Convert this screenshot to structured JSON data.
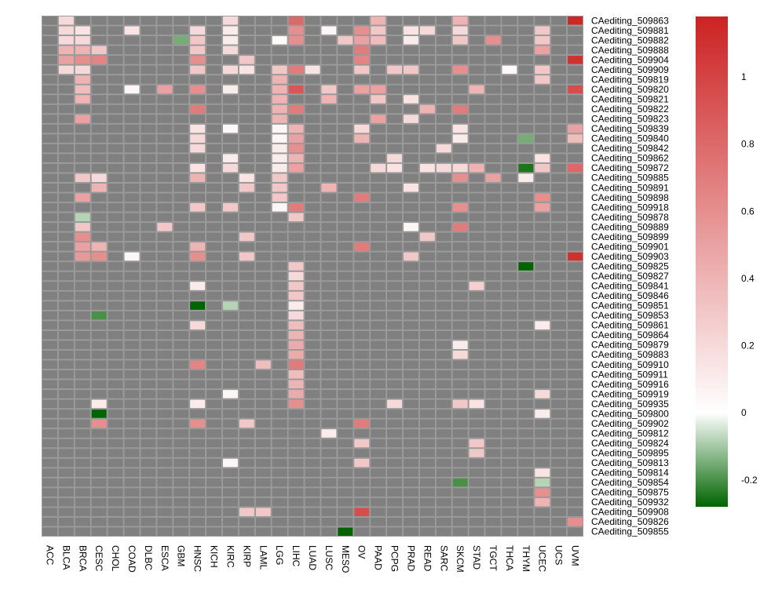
{
  "chart_data": {
    "type": "heatmap",
    "title": "",
    "xlabel": "",
    "ylabel": "",
    "columns": [
      "ACC",
      "BLCA",
      "BRCA",
      "CESC",
      "CHOL",
      "COAD",
      "DLBC",
      "ESCA",
      "GBM",
      "HNSC",
      "KICH",
      "KIRC",
      "KIRP",
      "LAML",
      "LGG",
      "LIHC",
      "LUAD",
      "LUSC",
      "MESO",
      "OV",
      "PAAD",
      "PCPG",
      "PRAD",
      "READ",
      "SARC",
      "SKCM",
      "STAD",
      "TGCT",
      "THCA",
      "THYM",
      "UCEC",
      "UCS",
      "UVM"
    ],
    "rows": [
      "CAediting_509863",
      "CAediting_509881",
      "CAediting_509882",
      "CAediting_509888",
      "CAediting_509904",
      "CAediting_509909",
      "CAediting_509819",
      "CAediting_509820",
      "CAediting_509821",
      "CAediting_509822",
      "CAediting_509823",
      "CAediting_509839",
      "CAediting_509840",
      "CAediting_509842",
      "CAediting_509862",
      "CAediting_509872",
      "CAediting_509885",
      "CAediting_509891",
      "CAediting_509898",
      "CAediting_509918",
      "CAediting_509878",
      "CAediting_509889",
      "CAediting_509899",
      "CAediting_509901",
      "CAediting_509903",
      "CAediting_509825",
      "CAediting_509827",
      "CAediting_509841",
      "CAediting_509846",
      "CAediting_509851",
      "CAediting_509853",
      "CAediting_509861",
      "CAediting_509864",
      "CAediting_509879",
      "CAediting_509883",
      "CAediting_509910",
      "CAediting_509911",
      "CAediting_509916",
      "CAediting_509919",
      "CAediting_509935",
      "CAediting_509800",
      "CAediting_509902",
      "CAediting_509812",
      "CAediting_509824",
      "CAediting_509895",
      "CAediting_509813",
      "CAediting_509814",
      "CAediting_509854",
      "CAediting_509875",
      "CAediting_509932",
      "CAediting_509908",
      "CAediting_509826",
      "CAediting_509855"
    ],
    "cells": [
      [
        "CAediting_509863",
        "BLCA",
        0.2
      ],
      [
        "CAediting_509863",
        "KIRC",
        0.2
      ],
      [
        "CAediting_509863",
        "LIHC",
        0.8
      ],
      [
        "CAediting_509863",
        "PAAD",
        0.4
      ],
      [
        "CAediting_509863",
        "SKCM",
        0.4
      ],
      [
        "CAediting_509863",
        "UVM",
        1.15
      ],
      [
        "CAediting_509881",
        "BLCA",
        0.2
      ],
      [
        "CAediting_509881",
        "BRCA",
        0.15
      ],
      [
        "CAediting_509881",
        "COAD",
        0.15
      ],
      [
        "CAediting_509881",
        "HNSC",
        0.2
      ],
      [
        "CAediting_509881",
        "KIRC",
        0.1
      ],
      [
        "CAediting_509881",
        "LIHC",
        0.6
      ],
      [
        "CAediting_509881",
        "LUSC",
        0.05
      ],
      [
        "CAediting_509881",
        "OV",
        0.6
      ],
      [
        "CAediting_509881",
        "PAAD",
        0.3
      ],
      [
        "CAediting_509881",
        "PRAD",
        0.15
      ],
      [
        "CAediting_509881",
        "READ",
        0.2
      ],
      [
        "CAediting_509881",
        "SKCM",
        0.2
      ],
      [
        "CAediting_509881",
        "UCEC",
        0.3
      ],
      [
        "CAediting_509882",
        "BLCA",
        0.2
      ],
      [
        "CAediting_509882",
        "BRCA",
        0.2
      ],
      [
        "CAediting_509882",
        "GBM",
        -0.15
      ],
      [
        "CAediting_509882",
        "HNSC",
        0.3
      ],
      [
        "CAediting_509882",
        "KIRC",
        0.1
      ],
      [
        "CAediting_509882",
        "LGG",
        0.02
      ],
      [
        "CAediting_509882",
        "LIHC",
        0.6
      ],
      [
        "CAediting_509882",
        "MESO",
        0.3
      ],
      [
        "CAediting_509882",
        "OV",
        0.5
      ],
      [
        "CAediting_509882",
        "PAAD",
        0.35
      ],
      [
        "CAediting_509882",
        "PRAD",
        0.1
      ],
      [
        "CAediting_509882",
        "SKCM",
        0.3
      ],
      [
        "CAediting_509882",
        "TGCT",
        0.6
      ],
      [
        "CAediting_509882",
        "UCEC",
        0.3
      ],
      [
        "CAediting_509888",
        "BLCA",
        0.4
      ],
      [
        "CAediting_509888",
        "BRCA",
        0.4
      ],
      [
        "CAediting_509888",
        "CESC",
        0.3
      ],
      [
        "CAediting_509888",
        "HNSC",
        0.3
      ],
      [
        "CAediting_509888",
        "KIRC",
        0.2
      ],
      [
        "CAediting_509888",
        "OV",
        0.7
      ],
      [
        "CAediting_509888",
        "UCEC",
        0.5
      ],
      [
        "CAediting_509904",
        "BLCA",
        0.5
      ],
      [
        "CAediting_509904",
        "BRCA",
        0.6
      ],
      [
        "CAediting_509904",
        "CESC",
        0.65
      ],
      [
        "CAediting_509904",
        "HNSC",
        0.6
      ],
      [
        "CAediting_509904",
        "KIRP",
        0.3
      ],
      [
        "CAediting_509904",
        "OV",
        0.65
      ],
      [
        "CAediting_509904",
        "UVM",
        1.1
      ],
      [
        "CAediting_509909",
        "BLCA",
        0.2
      ],
      [
        "CAediting_509909",
        "BRCA",
        0.2
      ],
      [
        "CAediting_509909",
        "HNSC",
        0.3
      ],
      [
        "CAediting_509909",
        "KIRC",
        0.2
      ],
      [
        "CAediting_509909",
        "KIRP",
        0.15
      ],
      [
        "CAediting_509909",
        "LGG",
        0.3
      ],
      [
        "CAediting_509909",
        "LIHC",
        0.7
      ],
      [
        "CAediting_509909",
        "LUAD",
        0.15
      ],
      [
        "CAediting_509909",
        "OV",
        0.3
      ],
      [
        "CAediting_509909",
        "PCPG",
        0.3
      ],
      [
        "CAediting_509909",
        "PRAD",
        0.3
      ],
      [
        "CAediting_509909",
        "SKCM",
        0.6
      ],
      [
        "CAediting_509909",
        "THCA",
        0.03
      ],
      [
        "CAediting_509909",
        "UCEC",
        0.3
      ],
      [
        "CAediting_509819",
        "BRCA",
        0.4
      ],
      [
        "CAediting_509819",
        "LGG",
        0.4
      ],
      [
        "CAediting_509819",
        "UCEC",
        0.3
      ],
      [
        "CAediting_509820",
        "BRCA",
        0.35
      ],
      [
        "CAediting_509820",
        "COAD",
        0.05
      ],
      [
        "CAediting_509820",
        "ESCA",
        0.5
      ],
      [
        "CAediting_509820",
        "HNSC",
        0.6
      ],
      [
        "CAediting_509820",
        "KIRC",
        0.1
      ],
      [
        "CAediting_509820",
        "LGG",
        0.4
      ],
      [
        "CAediting_509820",
        "LIHC",
        0.9
      ],
      [
        "CAediting_509820",
        "LUSC",
        0.3
      ],
      [
        "CAediting_509820",
        "OV",
        0.5
      ],
      [
        "CAediting_509820",
        "PAAD",
        0.5
      ],
      [
        "CAediting_509820",
        "STAD",
        0.4
      ],
      [
        "CAediting_509820",
        "UVM",
        0.95
      ],
      [
        "CAediting_509821",
        "BRCA",
        0.4
      ],
      [
        "CAediting_509821",
        "LGG",
        0.4
      ],
      [
        "CAediting_509821",
        "LUSC",
        0.4
      ],
      [
        "CAediting_509821",
        "PAAD",
        0.3
      ],
      [
        "CAediting_509821",
        "PRAD",
        0.15
      ],
      [
        "CAediting_509822",
        "HNSC",
        0.7
      ],
      [
        "CAediting_509822",
        "LGG",
        0.4
      ],
      [
        "CAediting_509822",
        "LIHC",
        0.7
      ],
      [
        "CAediting_509822",
        "READ",
        0.4
      ],
      [
        "CAediting_509822",
        "SKCM",
        0.7
      ],
      [
        "CAediting_509823",
        "BRCA",
        0.5
      ],
      [
        "CAediting_509823",
        "LGG",
        0.4
      ],
      [
        "CAediting_509823",
        "PAAD",
        0.5
      ],
      [
        "CAediting_509823",
        "PRAD",
        0.2
      ],
      [
        "CAediting_509839",
        "HNSC",
        0.15
      ],
      [
        "CAediting_509839",
        "KIRC",
        0.03
      ],
      [
        "CAediting_509839",
        "LGG",
        0.05
      ],
      [
        "CAediting_509839",
        "LIHC",
        0.4
      ],
      [
        "CAediting_509839",
        "OV",
        0.2
      ],
      [
        "CAediting_509839",
        "SKCM",
        0.15
      ],
      [
        "CAediting_509839",
        "UVM",
        0.5
      ],
      [
        "CAediting_509840",
        "HNSC",
        0.2
      ],
      [
        "CAediting_509840",
        "LGG",
        0.05
      ],
      [
        "CAediting_509840",
        "LIHC",
        0.5
      ],
      [
        "CAediting_509840",
        "OV",
        0.4
      ],
      [
        "CAediting_509840",
        "SKCM",
        0.1
      ],
      [
        "CAediting_509840",
        "THYM",
        -0.15
      ],
      [
        "CAediting_509840",
        "UVM",
        0.35
      ],
      [
        "CAediting_509842",
        "HNSC",
        0.2
      ],
      [
        "CAediting_509842",
        "LGG",
        0.1
      ],
      [
        "CAediting_509842",
        "LIHC",
        0.6
      ],
      [
        "CAediting_509842",
        "SARC",
        0.2
      ],
      [
        "CAediting_509862",
        "KIRC",
        0.1
      ],
      [
        "CAediting_509862",
        "LGG",
        0.1
      ],
      [
        "CAediting_509862",
        "LIHC",
        0.4
      ],
      [
        "CAediting_509862",
        "PCPG",
        0.2
      ],
      [
        "CAediting_509862",
        "UCEC",
        0.15
      ],
      [
        "CAediting_509872",
        "HNSC",
        0.15
      ],
      [
        "CAediting_509872",
        "KIRC",
        0.2
      ],
      [
        "CAediting_509872",
        "LGG",
        0.1
      ],
      [
        "CAediting_509872",
        "LIHC",
        0.5
      ],
      [
        "CAediting_509872",
        "PAAD",
        0.2
      ],
      [
        "CAediting_509872",
        "PCPG",
        0.15
      ],
      [
        "CAediting_509872",
        "READ",
        0.15
      ],
      [
        "CAediting_509872",
        "SARC",
        0.2
      ],
      [
        "CAediting_509872",
        "SKCM",
        0.2
      ],
      [
        "CAediting_509872",
        "STAD",
        0.4
      ],
      [
        "CAediting_509872",
        "THYM",
        -0.25
      ],
      [
        "CAediting_509872",
        "UCEC",
        0.3
      ],
      [
        "CAediting_509872",
        "UVM",
        0.8
      ],
      [
        "CAediting_509885",
        "BRCA",
        0.3
      ],
      [
        "CAediting_509885",
        "CESC",
        0.2
      ],
      [
        "CAediting_509885",
        "HNSC",
        0.4
      ],
      [
        "CAediting_509885",
        "KIRP",
        0.15
      ],
      [
        "CAediting_509885",
        "LGG",
        0.3
      ],
      [
        "CAediting_509885",
        "SKCM",
        0.6
      ],
      [
        "CAediting_509885",
        "TGCT",
        0.5
      ],
      [
        "CAediting_509885",
        "THYM",
        0.1
      ],
      [
        "CAediting_509891",
        "CESC",
        0.4
      ],
      [
        "CAediting_509891",
        "KIRP",
        0.3
      ],
      [
        "CAediting_509891",
        "LGG",
        0.3
      ],
      [
        "CAediting_509891",
        "LUSC",
        0.4
      ],
      [
        "CAediting_509891",
        "PRAD",
        0.15
      ],
      [
        "CAediting_509898",
        "BRCA",
        0.5
      ],
      [
        "CAediting_509898",
        "LGG",
        0.3
      ],
      [
        "CAediting_509898",
        "OV",
        0.7
      ],
      [
        "CAediting_509898",
        "UCEC",
        0.6
      ],
      [
        "CAediting_509918",
        "HNSC",
        0.3
      ],
      [
        "CAediting_509918",
        "KIRC",
        0.3
      ],
      [
        "CAediting_509918",
        "LGG",
        0.05
      ],
      [
        "CAediting_509918",
        "LIHC",
        0.7
      ],
      [
        "CAediting_509918",
        "SKCM",
        0.6
      ],
      [
        "CAediting_509918",
        "UCEC",
        0.5
      ],
      [
        "CAediting_509878",
        "BRCA",
        -0.08
      ],
      [
        "CAediting_509878",
        "LIHC",
        0.3
      ],
      [
        "CAediting_509889",
        "BRCA",
        0.3
      ],
      [
        "CAediting_509889",
        "ESCA",
        0.3
      ],
      [
        "CAediting_509889",
        "PRAD",
        0.05
      ],
      [
        "CAediting_509889",
        "SKCM",
        0.7
      ],
      [
        "CAediting_509899",
        "BRCA",
        0.6
      ],
      [
        "CAediting_509899",
        "KIRP",
        0.3
      ],
      [
        "CAediting_509899",
        "READ",
        0.3
      ],
      [
        "CAediting_509901",
        "BRCA",
        0.5
      ],
      [
        "CAediting_509901",
        "CESC",
        0.4
      ],
      [
        "CAediting_509901",
        "HNSC",
        0.4
      ],
      [
        "CAediting_509901",
        "OV",
        0.7
      ],
      [
        "CAediting_509903",
        "BRCA",
        0.55
      ],
      [
        "CAediting_509903",
        "CESC",
        0.6
      ],
      [
        "CAediting_509903",
        "COAD",
        0.05
      ],
      [
        "CAediting_509903",
        "HNSC",
        0.6
      ],
      [
        "CAediting_509903",
        "KIRP",
        0.3
      ],
      [
        "CAediting_509903",
        "PRAD",
        0.3
      ],
      [
        "CAediting_509903",
        "UVM",
        1.1
      ],
      [
        "CAediting_509825",
        "LIHC",
        0.3
      ],
      [
        "CAediting_509825",
        "THYM",
        -0.3
      ],
      [
        "CAediting_509827",
        "LIHC",
        0.2
      ],
      [
        "CAediting_509841",
        "HNSC",
        0.1
      ],
      [
        "CAediting_509841",
        "LIHC",
        0.3
      ],
      [
        "CAediting_509841",
        "STAD",
        0.25
      ],
      [
        "CAediting_509846",
        "LIHC",
        0.3
      ],
      [
        "CAediting_509851",
        "HNSC",
        -0.3
      ],
      [
        "CAediting_509851",
        "KIRC",
        -0.08
      ],
      [
        "CAediting_509851",
        "LIHC",
        0.1
      ],
      [
        "CAediting_509853",
        "CESC",
        -0.2
      ],
      [
        "CAediting_509853",
        "LIHC",
        0.2
      ],
      [
        "CAediting_509861",
        "HNSC",
        0.2
      ],
      [
        "CAediting_509861",
        "LIHC",
        0.35
      ],
      [
        "CAediting_509861",
        "UCEC",
        0.1
      ],
      [
        "CAediting_509864",
        "LIHC",
        0.4
      ],
      [
        "CAediting_509879",
        "LIHC",
        0.45
      ],
      [
        "CAediting_509879",
        "SKCM",
        0.1
      ],
      [
        "CAediting_509883",
        "LIHC",
        0.45
      ],
      [
        "CAediting_509883",
        "SKCM",
        0.2
      ],
      [
        "CAediting_509910",
        "HNSC",
        0.65
      ],
      [
        "CAediting_509910",
        "LAML",
        0.35
      ],
      [
        "CAediting_509910",
        "LIHC",
        0.7
      ],
      [
        "CAediting_509911",
        "LIHC",
        0.35
      ],
      [
        "CAediting_509916",
        "LIHC",
        0.4
      ],
      [
        "CAediting_509919",
        "KIRC",
        0.05
      ],
      [
        "CAediting_509919",
        "LIHC",
        0.45
      ],
      [
        "CAediting_509919",
        "UCEC",
        0.2
      ],
      [
        "CAediting_509935",
        "CESC",
        0.1
      ],
      [
        "CAediting_509935",
        "HNSC",
        0.1
      ],
      [
        "CAediting_509935",
        "LIHC",
        0.6
      ],
      [
        "CAediting_509935",
        "PCPG",
        0.2
      ],
      [
        "CAediting_509935",
        "SKCM",
        0.3
      ],
      [
        "CAediting_509935",
        "STAD",
        0.15
      ],
      [
        "CAediting_509800",
        "CESC",
        -0.3
      ],
      [
        "CAediting_509800",
        "UCEC",
        0.1
      ],
      [
        "CAediting_509902",
        "CESC",
        0.6
      ],
      [
        "CAediting_509902",
        "HNSC",
        0.6
      ],
      [
        "CAediting_509902",
        "KIRP",
        0.3
      ],
      [
        "CAediting_509902",
        "OV",
        0.7
      ],
      [
        "CAediting_509812",
        "LUSC",
        0.1
      ],
      [
        "CAediting_509824",
        "OV",
        0.3
      ],
      [
        "CAediting_509824",
        "STAD",
        0.3
      ],
      [
        "CAediting_509895",
        "STAD",
        0.3
      ],
      [
        "CAediting_509813",
        "KIRC",
        0.05
      ],
      [
        "CAediting_509813",
        "OV",
        0.3
      ],
      [
        "CAediting_509814",
        "UCEC",
        0.15
      ],
      [
        "CAediting_509854",
        "SKCM",
        -0.2
      ],
      [
        "CAediting_509854",
        "UCEC",
        -0.08
      ],
      [
        "CAediting_509875",
        "UCEC",
        0.6
      ],
      [
        "CAediting_509932",
        "UCEC",
        0.4
      ],
      [
        "CAediting_509908",
        "KIRP",
        0.3
      ],
      [
        "CAediting_509908",
        "LAML",
        0.3
      ],
      [
        "CAediting_509908",
        "OV",
        0.95
      ],
      [
        "CAediting_509826",
        "UVM",
        0.6
      ],
      [
        "CAediting_509855",
        "MESO",
        -0.35
      ]
    ],
    "missing_color": "#808080",
    "colorscale": {
      "min": -0.28,
      "max": 1.18,
      "low_color": "#006400",
      "mid_color": "#ffffff",
      "high_color": "#cc2222",
      "ticks": [
        "1",
        "0.8",
        "0.6",
        "0.4",
        "0.2",
        "0",
        "-0.2"
      ]
    }
  }
}
